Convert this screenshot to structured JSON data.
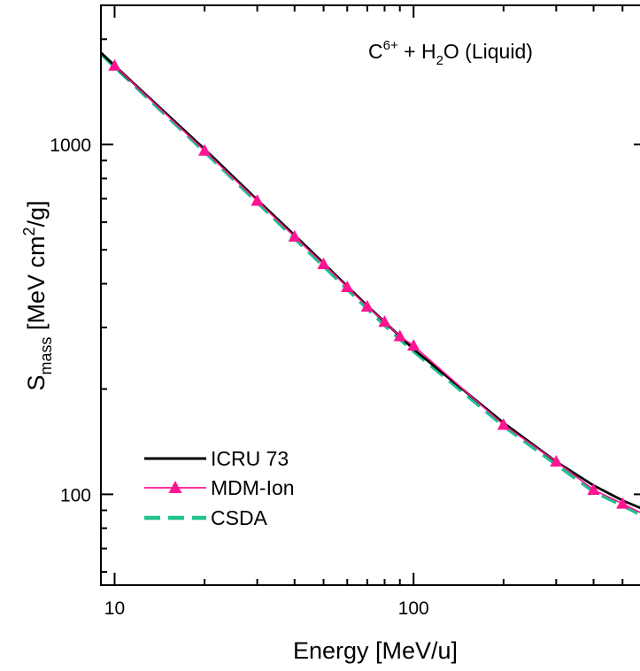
{
  "chart_data": {
    "type": "line",
    "annotation": {
      "base": "C",
      "sup": "6+",
      "mid": " + H",
      "sub": "2",
      "tail": "O (Liquid)"
    },
    "xlabel": "Energy [MeV/u]",
    "ylabel": {
      "main": "S",
      "sub": "mass",
      "rest": " [MeV cm",
      "sup": "2",
      "end": "/g]"
    },
    "xscale": "log",
    "yscale": "log",
    "xlim": [
      9,
      600
    ],
    "ylim": [
      55,
      2500
    ],
    "x_ticks": [
      {
        "value": 10,
        "label": "10"
      },
      {
        "value": 100,
        "label": "100"
      }
    ],
    "y_ticks": [
      {
        "value": 100,
        "label": "100"
      },
      {
        "value": 1000,
        "label": "1000"
      }
    ],
    "legend_position": "bottom-left",
    "grid": false,
    "series": [
      {
        "name": "ICRU 73",
        "color": "#000000",
        "style": "solid",
        "x": [
          9,
          10,
          20,
          30,
          40,
          50,
          60,
          70,
          80,
          90,
          100,
          200,
          300,
          400,
          500,
          600
        ],
        "y": [
          1830,
          1680,
          970,
          695,
          550,
          458,
          393,
          346,
          311,
          283,
          260,
          160,
          124,
          106,
          96,
          90
        ]
      },
      {
        "name": "MDM-Ion",
        "color": "#ff1493",
        "style": "solid-triangle",
        "x": [
          10,
          20,
          30,
          40,
          50,
          60,
          70,
          80,
          90,
          100,
          200,
          300,
          400,
          500,
          600
        ],
        "y": [
          1680,
          960,
          690,
          545,
          455,
          391,
          344,
          311,
          283,
          266,
          158,
          124,
          103,
          94,
          87
        ]
      },
      {
        "name": "CSDA",
        "color": "#1fc28f",
        "style": "dashed",
        "x": [
          9,
          10,
          20,
          30,
          40,
          50,
          60,
          70,
          80,
          90,
          100,
          200,
          300,
          400,
          500,
          600
        ],
        "y": [
          1820,
          1670,
          955,
          685,
          540,
          450,
          387,
          340,
          305,
          278,
          257,
          157,
          122,
          102,
          93,
          86
        ]
      }
    ]
  }
}
